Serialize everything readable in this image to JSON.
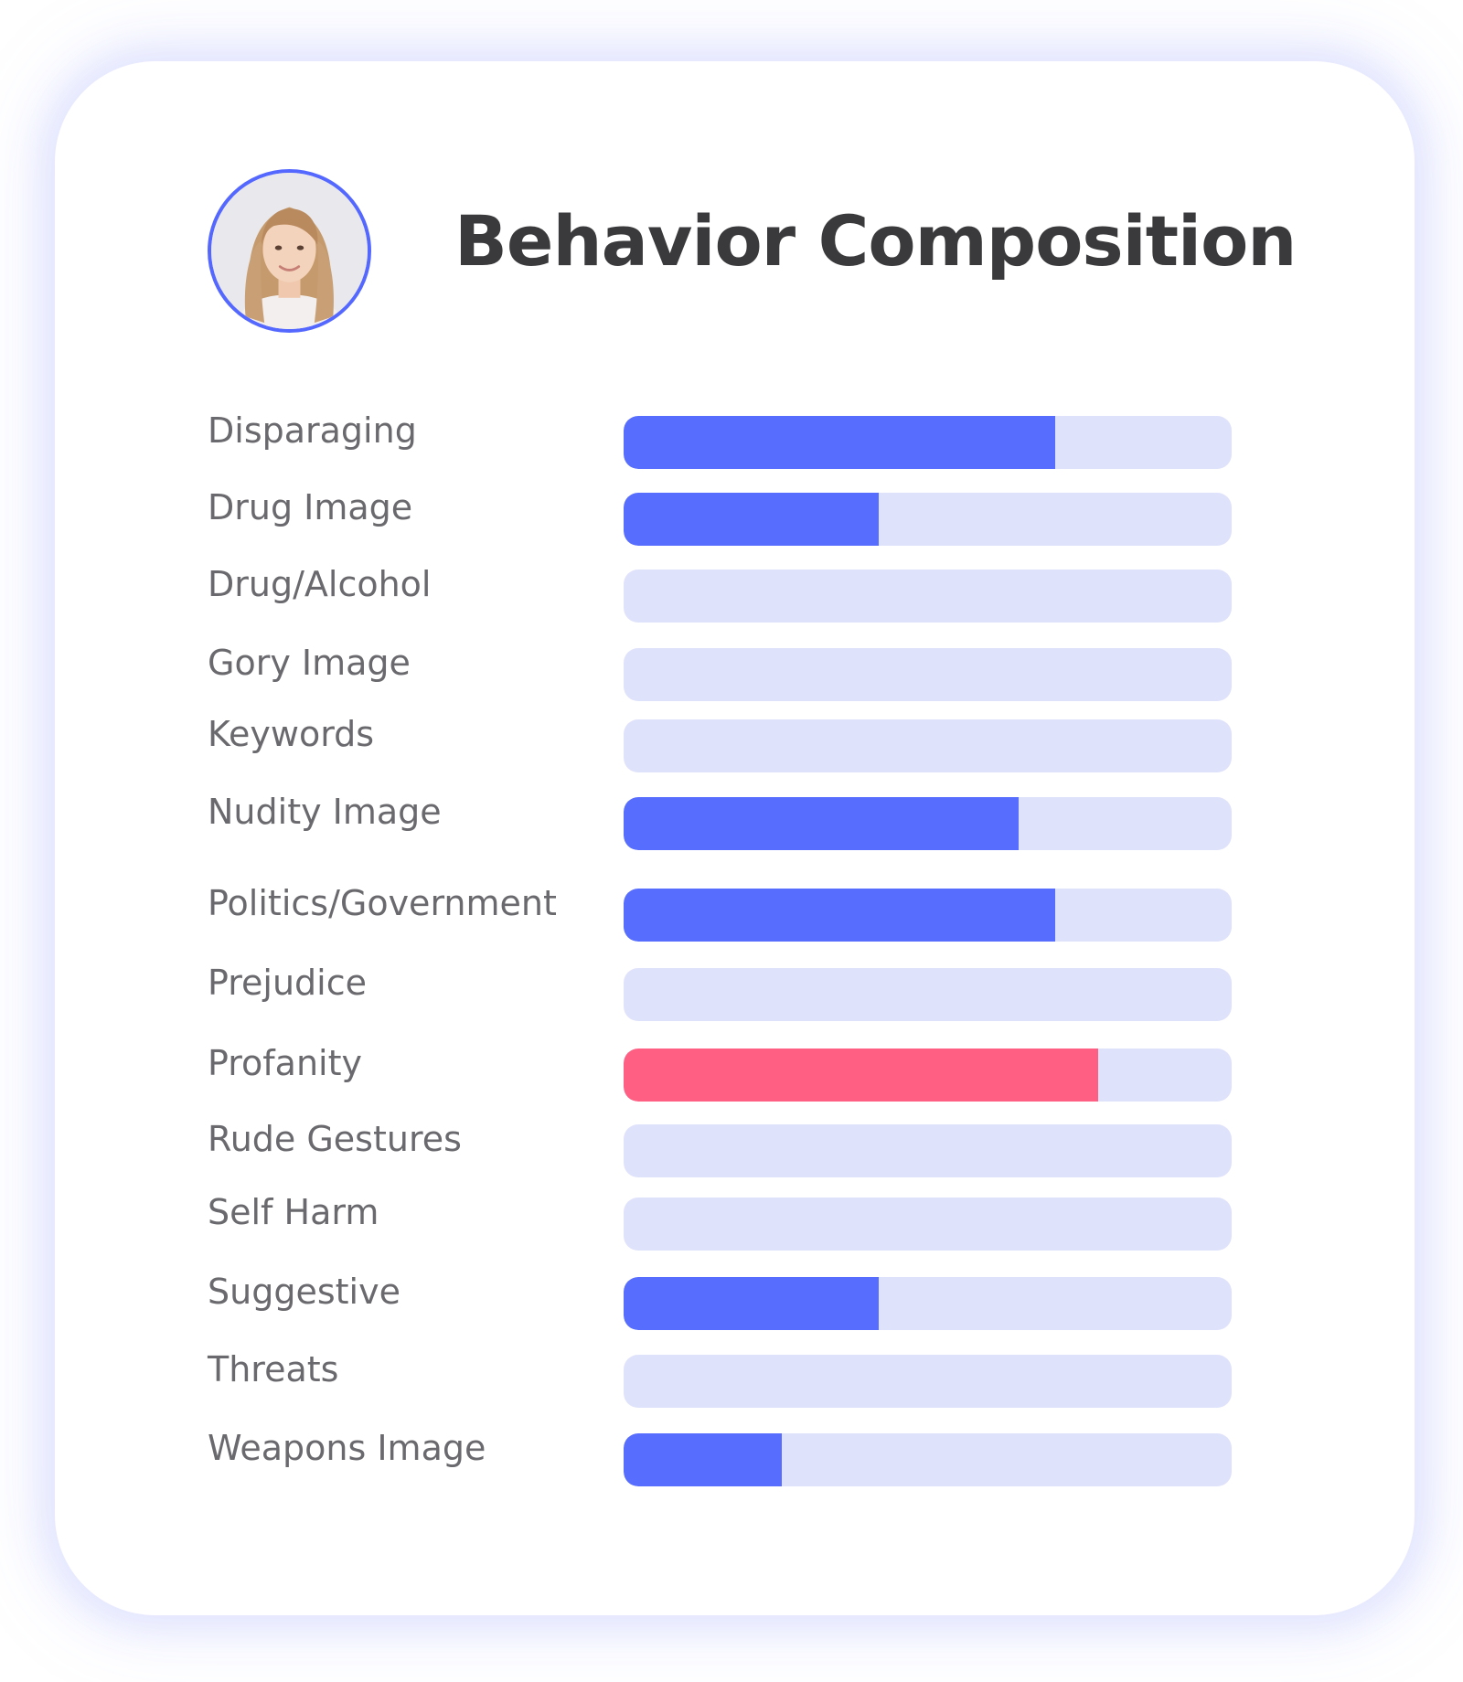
{
  "header": {
    "title": "Behavior Composition"
  },
  "colors": {
    "track": "#dfe2fb",
    "fill_default": "#566dfe",
    "fill_alert": "#ff5f82",
    "avatar_ring": "#5468ff"
  },
  "icons": {
    "avatar": "user-avatar-photo"
  },
  "chart_data": {
    "type": "bar",
    "orientation": "horizontal",
    "title": "Behavior Composition",
    "xlim": [
      0,
      1
    ],
    "grid": false,
    "categories": [
      "Disparaging",
      "Drug Image",
      "Drug/Alcohol",
      "Gory Image",
      "Keywords",
      "Nudity Image",
      "Politics/Government",
      "Prejudice",
      "Profanity",
      "Rude Gestures",
      "Self Harm",
      "Suggestive",
      "Threats",
      "Weapons Image"
    ],
    "values": [
      0.71,
      0.42,
      0,
      0,
      0,
      0.65,
      0.71,
      0,
      0.78,
      0,
      0,
      0.42,
      0,
      0.26
    ],
    "highlight": [
      "default",
      "default",
      "default",
      "default",
      "default",
      "default",
      "default",
      "default",
      "alert",
      "default",
      "default",
      "default",
      "default",
      "default"
    ]
  }
}
